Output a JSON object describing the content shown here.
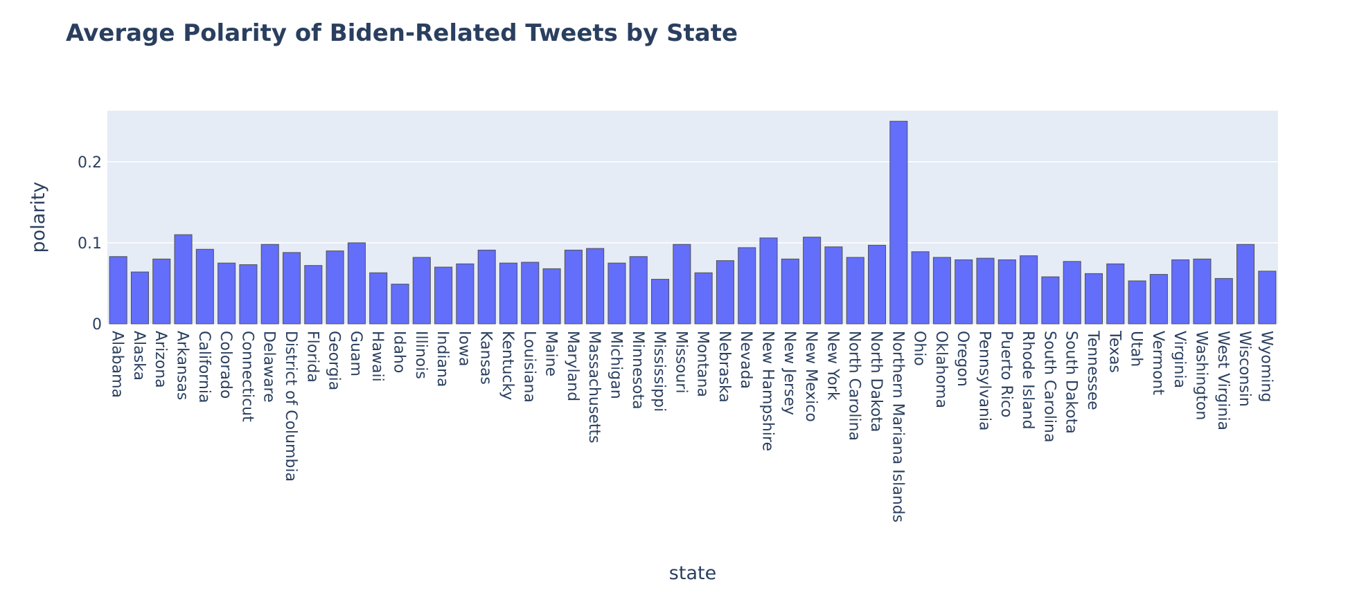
{
  "colors": {
    "plot_bg": "#e5ecf6",
    "bar_fill": "#636efa",
    "bar_line": "#505050",
    "grid": "#ffffff",
    "text": "#2a3f5f"
  },
  "chart_data": {
    "type": "bar",
    "title": "Average Polarity of Biden-Related Tweets by State",
    "xlabel": "state",
    "ylabel": "polarity",
    "ylim": [
      0,
      0.263
    ],
    "yticks": [
      0,
      0.1,
      0.2
    ],
    "ytick_labels": [
      "0",
      "0.1",
      "0.2"
    ],
    "grid": true,
    "categories": [
      "Alabama",
      "Alaska",
      "Arizona",
      "Arkansas",
      "California",
      "Colorado",
      "Connecticut",
      "Delaware",
      "District of Columbia",
      "Florida",
      "Georgia",
      "Guam",
      "Hawaii",
      "Idaho",
      "Illinois",
      "Indiana",
      "Iowa",
      "Kansas",
      "Kentucky",
      "Louisiana",
      "Maine",
      "Maryland",
      "Massachusetts",
      "Michigan",
      "Minnesota",
      "Mississippi",
      "Missouri",
      "Montana",
      "Nebraska",
      "Nevada",
      "New Hampshire",
      "New Jersey",
      "New Mexico",
      "New York",
      "North Carolina",
      "North Dakota",
      "Northern Mariana Islands",
      "Ohio",
      "Oklahoma",
      "Oregon",
      "Pennsylvania",
      "Puerto Rico",
      "Rhode Island",
      "South Carolina",
      "South Dakota",
      "Tennessee",
      "Texas",
      "Utah",
      "Vermont",
      "Virginia",
      "Washington",
      "West Virginia",
      "Wisconsin",
      "Wyoming"
    ],
    "values": [
      0.083,
      0.064,
      0.08,
      0.11,
      0.092,
      0.075,
      0.073,
      0.098,
      0.088,
      0.072,
      0.09,
      0.1,
      0.063,
      0.049,
      0.082,
      0.07,
      0.074,
      0.091,
      0.075,
      0.076,
      0.068,
      0.091,
      0.093,
      0.075,
      0.083,
      0.055,
      0.098,
      0.063,
      0.078,
      0.094,
      0.106,
      0.08,
      0.107,
      0.095,
      0.082,
      0.097,
      0.25,
      0.089,
      0.082,
      0.079,
      0.081,
      0.079,
      0.084,
      0.058,
      0.077,
      0.062,
      0.074,
      0.053,
      0.061,
      0.079,
      0.08,
      0.056,
      0.098,
      0.065
    ]
  }
}
